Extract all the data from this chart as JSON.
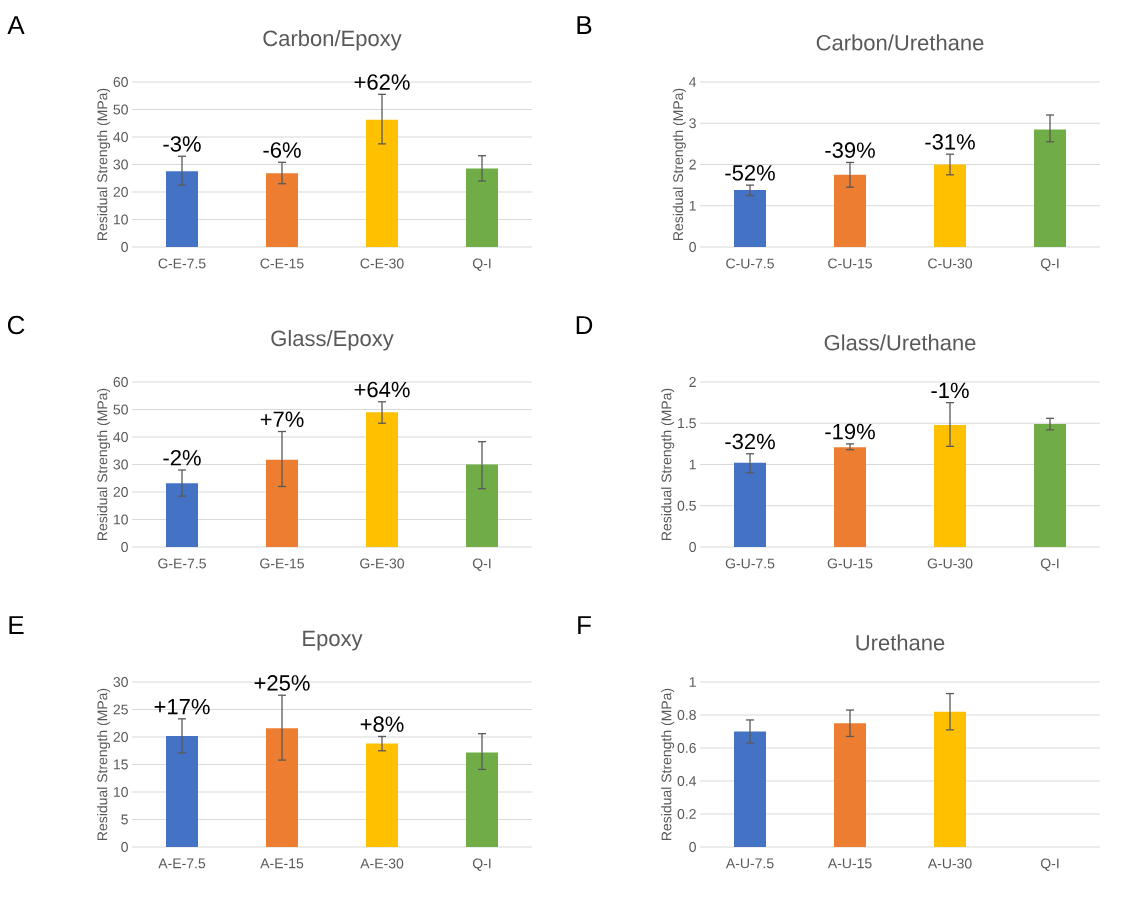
{
  "chart_data": [
    {
      "type": "bar",
      "title": "Carbon/Epoxy",
      "ylabel": "Residual Strength (MPa)",
      "categories": [
        "C-E-7.5",
        "C-E-15",
        "C-E-30",
        "Q-I"
      ],
      "values": [
        27.5,
        26.8,
        46.3,
        28.5
      ],
      "colors": [
        "#4472c4",
        "#ed7d31",
        "#ffc000",
        "#70ad47"
      ],
      "errors": [
        [
          22.5,
          33
        ],
        [
          23,
          30.8
        ],
        [
          37.5,
          55.5
        ],
        [
          24,
          33.2
        ]
      ],
      "ylim": [
        0,
        60
      ],
      "yticks": [
        0,
        10,
        20,
        30,
        40,
        50,
        60
      ],
      "grid": "y",
      "annotations": [
        "A",
        {
          "text": "-3%",
          "x": "C-E-7.5",
          "y": 33
        },
        {
          "text": "-6%",
          "x": "C-E-15",
          "y": 30.8
        },
        {
          "text": "+62%",
          "x": "C-E-30",
          "y": 55.5
        }
      ]
    },
    {
      "type": "bar",
      "title": "Carbon/Urethane",
      "ylabel": "Residual Strength (MPa)",
      "categories": [
        "C-U-7.5",
        "C-U-15",
        "C-U-30",
        "Q-I"
      ],
      "values": [
        1.38,
        1.75,
        2.0,
        2.85
      ],
      "colors": [
        "#4472c4",
        "#ed7d31",
        "#ffc000",
        "#70ad47"
      ],
      "errors": [
        [
          1.25,
          1.5
        ],
        [
          1.45,
          2.05
        ],
        [
          1.75,
          2.25
        ],
        [
          2.55,
          3.2
        ]
      ],
      "ylim": [
        0,
        4
      ],
      "yticks": [
        0,
        1,
        2,
        3,
        4
      ],
      "grid": "y",
      "annotations": [
        "B",
        {
          "text": "-52%",
          "x": "C-U-7.5",
          "y": 1.5
        },
        {
          "text": "-39%",
          "x": "C-U-15",
          "y": 2.05
        },
        {
          "text": "-31%",
          "x": "C-U-30",
          "y": 2.25
        }
      ]
    },
    {
      "type": "bar",
      "title": "Glass/Epoxy",
      "ylabel": "Residual Strength (MPa)",
      "categories": [
        "G-E-7.5",
        "G-E-15",
        "G-E-30",
        "Q-I"
      ],
      "values": [
        23.2,
        31.7,
        49,
        30
      ],
      "colors": [
        "#4472c4",
        "#ed7d31",
        "#ffc000",
        "#70ad47"
      ],
      "errors": [
        [
          18.5,
          28
        ],
        [
          22,
          42
        ],
        [
          45,
          52.8
        ],
        [
          21.2,
          38.3
        ]
      ],
      "ylim": [
        0,
        60
      ],
      "yticks": [
        0,
        10,
        20,
        30,
        40,
        50,
        60
      ],
      "grid": "y",
      "annotations": [
        "C",
        {
          "text": "-2%",
          "x": "G-E-7.5",
          "y": 28
        },
        {
          "text": "+7%",
          "x": "G-E-15",
          "y": 42
        },
        {
          "text": "+64%",
          "x": "G-E-30",
          "y": 52.8
        }
      ]
    },
    {
      "type": "bar",
      "title": "Glass/Urethane",
      "ylabel": "Residual Strength (MPa)",
      "categories": [
        "G-U-7.5",
        "G-U-15",
        "G-U-30",
        "Q-I"
      ],
      "values": [
        1.02,
        1.21,
        1.48,
        1.49
      ],
      "colors": [
        "#4472c4",
        "#ed7d31",
        "#ffc000",
        "#70ad47"
      ],
      "errors": [
        [
          0.9,
          1.13
        ],
        [
          1.18,
          1.25
        ],
        [
          1.22,
          1.75
        ],
        [
          1.42,
          1.56
        ]
      ],
      "ylim": [
        0,
        2
      ],
      "yticks": [
        0,
        0.5,
        1,
        1.5,
        2
      ],
      "grid": "y",
      "annotations": [
        "D",
        {
          "text": "-32%",
          "x": "G-U-7.5",
          "y": 1.13
        },
        {
          "text": "-19%",
          "x": "G-U-15",
          "y": 1.25
        },
        {
          "text": "-1%",
          "x": "G-U-30",
          "y": 1.75
        }
      ]
    },
    {
      "type": "bar",
      "title": "Epoxy",
      "ylabel": "Residual Strength (MPa)",
      "categories": [
        "A-E-7.5",
        "A-E-15",
        "A-E-30",
        "Q-I"
      ],
      "values": [
        20.2,
        21.6,
        18.8,
        17.2
      ],
      "colors": [
        "#4472c4",
        "#ed7d31",
        "#ffc000",
        "#70ad47"
      ],
      "errors": [
        [
          17.1,
          23.3
        ],
        [
          15.8,
          27.6
        ],
        [
          17.5,
          20.1
        ],
        [
          14.1,
          20.6
        ]
      ],
      "ylim": [
        0,
        30
      ],
      "yticks": [
        0,
        5,
        10,
        15,
        20,
        25,
        30
      ],
      "grid": "y",
      "annotations": [
        "E",
        {
          "text": "+17%",
          "x": "A-E-7.5",
          "y": 23.3
        },
        {
          "text": "+25%",
          "x": "A-E-15",
          "y": 27.6
        },
        {
          "text": "+8%",
          "x": "A-E-30",
          "y": 20.1
        }
      ]
    },
    {
      "type": "bar",
      "title": "Urethane",
      "ylabel": "Residual Strength (MPa)",
      "categories": [
        "A-U-7.5",
        "A-U-15",
        "A-U-30",
        "Q-I"
      ],
      "values": [
        0.7,
        0.75,
        0.82,
        null
      ],
      "colors": [
        "#4472c4",
        "#ed7d31",
        "#ffc000",
        "#70ad47"
      ],
      "errors": [
        [
          0.63,
          0.77
        ],
        [
          0.67,
          0.83
        ],
        [
          0.71,
          0.93
        ],
        null
      ],
      "ylim": [
        0,
        1
      ],
      "yticks": [
        0,
        0.2,
        0.4,
        0.6,
        0.8,
        1
      ],
      "grid": "y",
      "annotations": [
        "F"
      ]
    }
  ]
}
